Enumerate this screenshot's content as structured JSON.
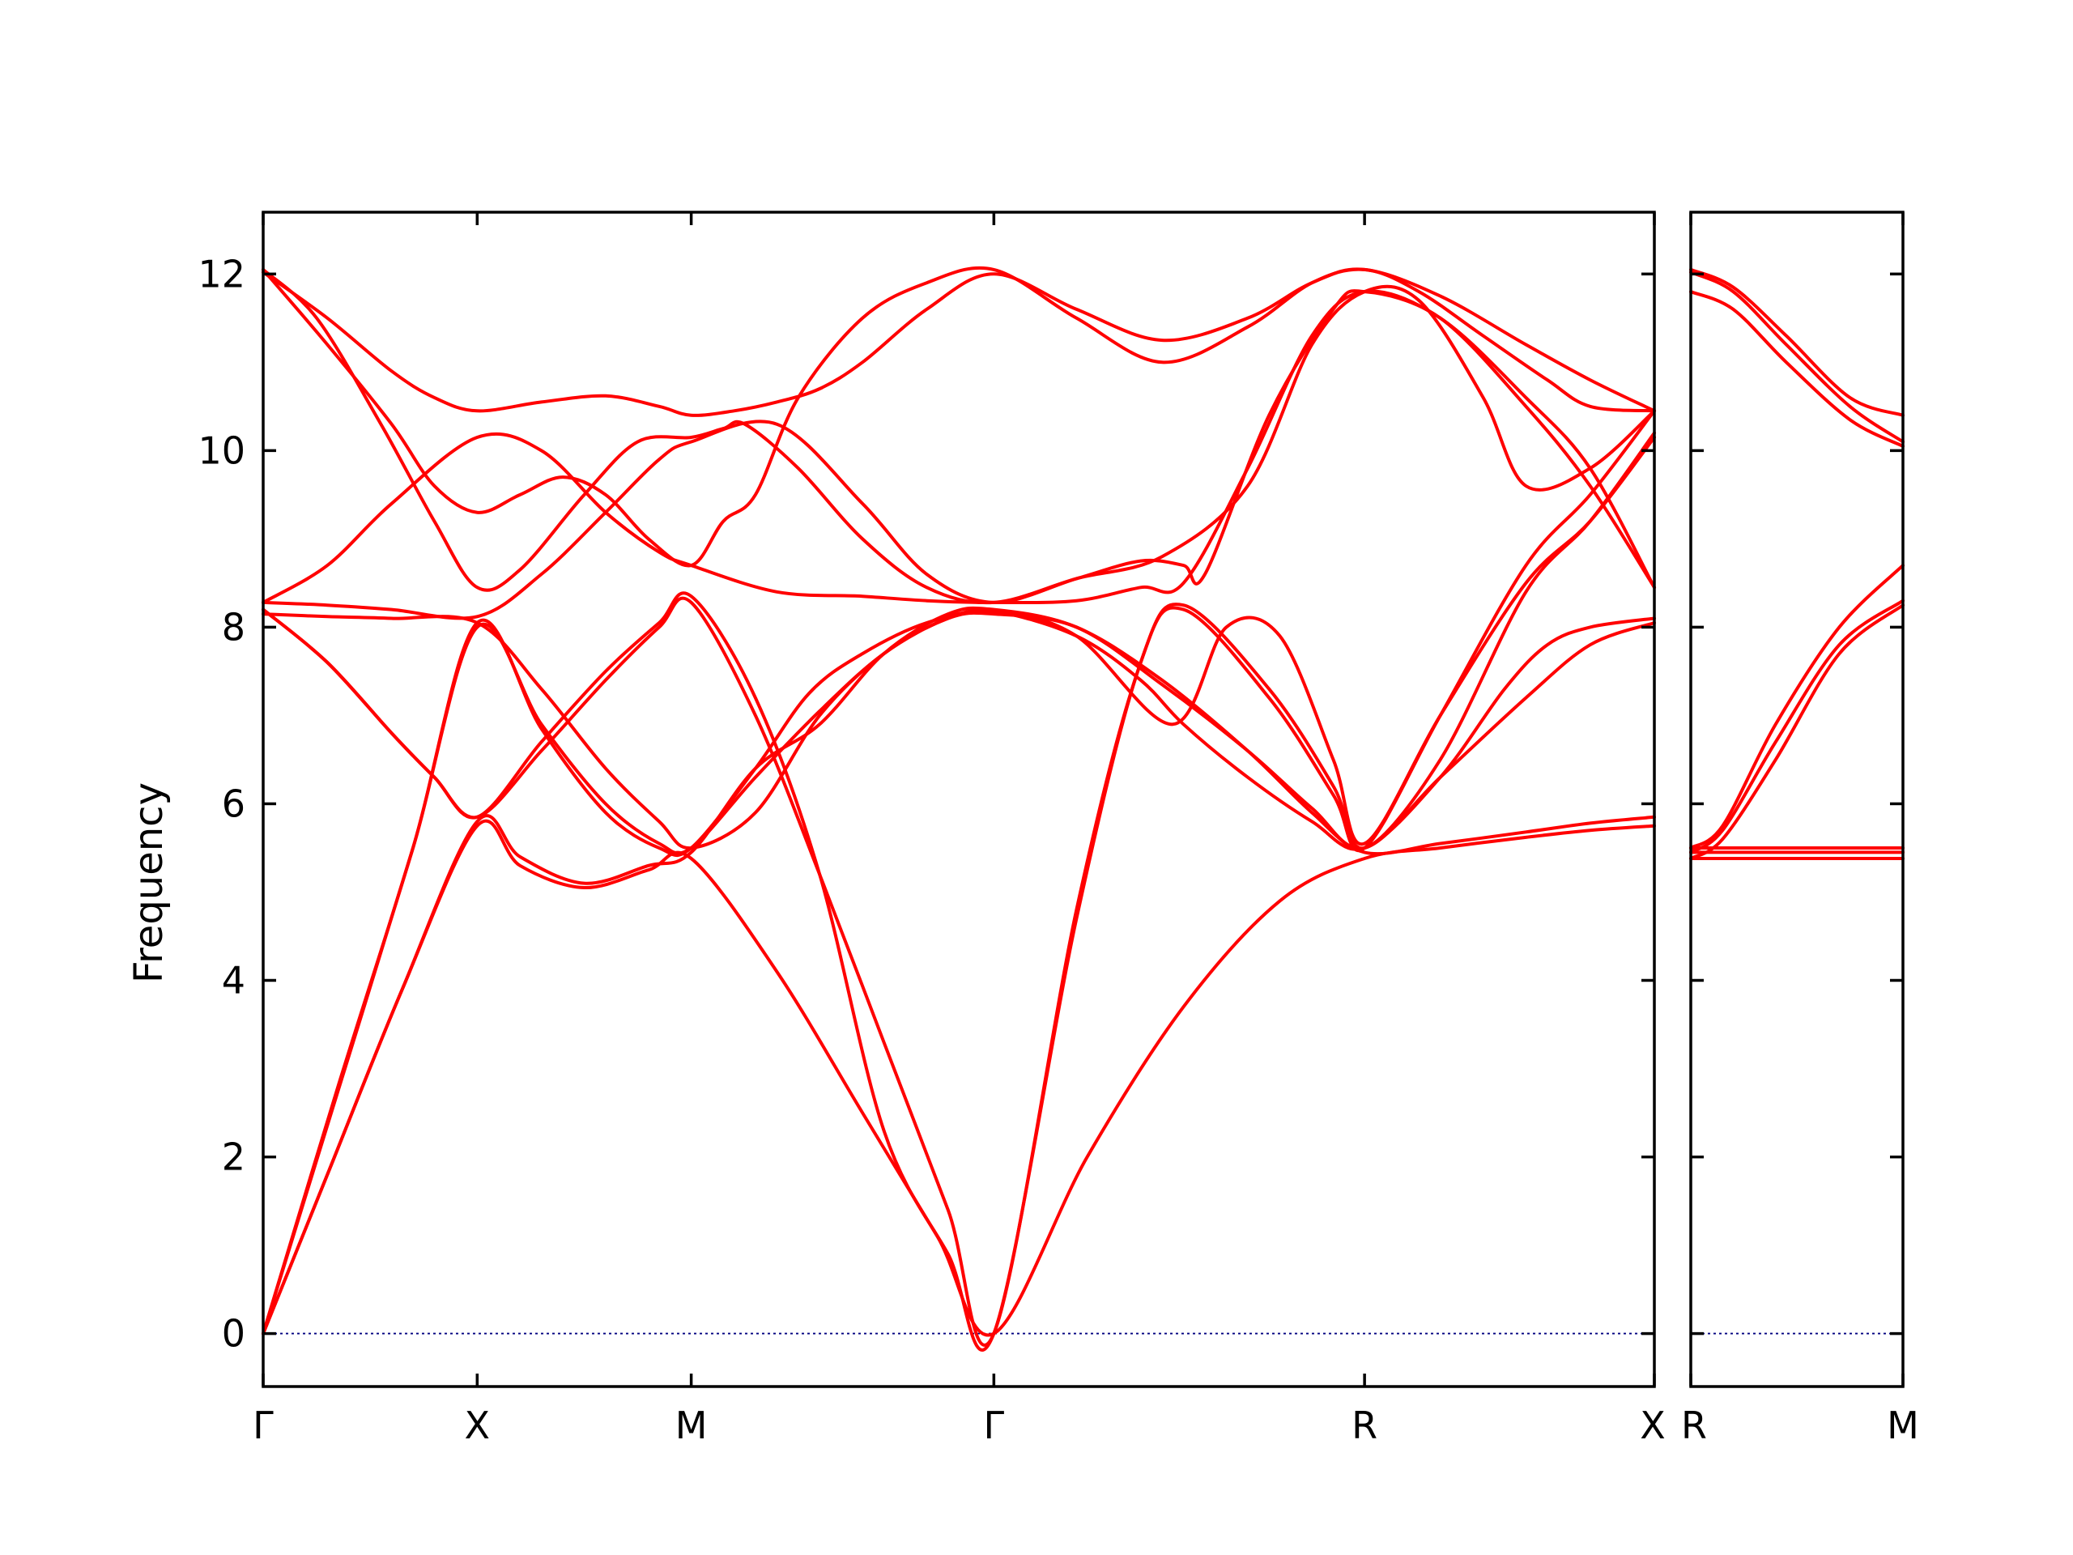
{
  "chart_data": {
    "type": "line",
    "ylabel": "Frequency",
    "ylim": [
      -0.6,
      12.7
    ],
    "yticks": [
      0,
      2,
      4,
      6,
      8,
      10,
      12
    ],
    "colors": {
      "bands": "#ff0000",
      "zero_line": "#000080",
      "axes": "#000000"
    },
    "grid": false,
    "panels": [
      {
        "name": "main",
        "xlim": [
          0,
          6.5
        ],
        "ticks": [
          {
            "label": "Γ",
            "x": 0
          },
          {
            "label": "X",
            "x": 1
          },
          {
            "label": "M",
            "x": 2
          },
          {
            "label": "Γ",
            "x": 3.414
          },
          {
            "label": "R",
            "x": 5.146
          },
          {
            "label": "X",
            "x": 6.5
          }
        ],
        "series": [
          {
            "x": [
              0,
              0.3,
              0.65,
              1.0,
              1.2,
              1.5,
              1.8,
              2.0,
              2.4,
              2.8,
              3.15,
              3.414,
              3.85,
              4.3,
              4.75,
              5.146,
              5.5,
              5.9,
              6.2,
              6.5
            ],
            "y": [
              0,
              1.8,
              3.9,
              5.75,
              5.3,
              5.05,
              5.25,
              5.38,
              4.1,
              2.5,
              1.1,
              0,
              2.0,
              3.7,
              4.9,
              5.38,
              5.5,
              5.62,
              5.7,
              5.75
            ]
          },
          {
            "x": [
              0,
              0.3,
              0.65,
              1.0,
              1.2,
              1.5,
              1.8,
              2.0,
              2.3,
              2.6,
              2.9,
              3.2,
              3.414,
              3.8,
              4.2,
              4.6,
              4.9,
              5.146,
              5.5,
              5.9,
              6.2,
              6.5
            ],
            "y": [
              0,
              1.8,
              3.9,
              5.8,
              5.4,
              5.1,
              5.3,
              5.45,
              6.4,
              6.9,
              7.7,
              8.15,
              8.2,
              8.0,
              7.4,
              6.6,
              5.9,
              5.45,
              5.55,
              5.68,
              5.78,
              5.85
            ]
          },
          {
            "x": [
              0,
              0.35,
              0.7,
              1.0,
              1.3,
              1.6,
              1.85,
              2.0,
              2.3,
              2.6,
              2.9,
              3.2,
              3.414,
              3.8,
              4.2,
              4.6,
              4.9,
              5.146,
              5.5,
              5.9,
              6.2,
              6.5
            ],
            "y": [
              0,
              2.75,
              5.5,
              8.0,
              6.9,
              6.0,
              5.55,
              5.5,
              6.3,
              7.05,
              7.7,
              8.1,
              8.15,
              8.0,
              7.35,
              6.6,
              5.95,
              5.5,
              6.3,
              7.2,
              7.8,
              8.05
            ]
          },
          {
            "x": [
              0,
              0.35,
              0.7,
              1.0,
              1.3,
              1.6,
              1.85,
              2.0,
              2.3,
              2.55,
              2.8,
              3.1,
              3.414,
              3.8,
              4.25,
              4.5,
              4.75,
              5.0,
              5.146,
              5.5,
              5.9,
              6.2,
              6.5
            ],
            "y": [
              0,
              2.8,
              5.5,
              8.05,
              6.85,
              5.9,
              5.5,
              5.5,
              6.4,
              7.25,
              7.7,
              8.05,
              8.18,
              7.9,
              6.9,
              8.0,
              7.9,
              6.5,
              5.55,
              7.0,
              8.5,
              9.2,
              10.15
            ]
          },
          {
            "x": [
              0,
              0.3,
              0.6,
              0.8,
              1.0,
              1.3,
              1.6,
              1.85,
              2.0,
              2.3,
              2.6,
              2.9,
              3.2,
              3.414,
              3.8,
              4.1,
              4.3,
              4.7,
              5.0,
              5.146,
              5.5,
              5.9,
              6.2,
              6.5
            ],
            "y": [
              8.2,
              7.6,
              6.8,
              6.3,
              5.85,
              6.6,
              7.4,
              8.0,
              8.28,
              7.0,
              5.2,
              3.3,
              1.4,
              0,
              4.8,
              7.6,
              8.25,
              7.3,
              6.2,
              5.5,
              6.5,
              8.4,
              9.2,
              10.2
            ]
          },
          {
            "x": [
              0,
              0.3,
              0.6,
              0.8,
              1.0,
              1.3,
              1.6,
              1.85,
              2.0,
              2.3,
              2.6,
              2.9,
              3.2,
              3.414,
              3.8,
              4.1,
              4.3,
              4.7,
              5.0,
              5.146,
              5.5,
              5.9,
              6.2,
              6.5
            ],
            "y": [
              8.2,
              7.6,
              6.8,
              6.3,
              5.85,
              6.7,
              7.5,
              8.05,
              8.35,
              7.2,
              5.2,
              2.3,
              0.9,
              0,
              4.7,
              7.6,
              8.2,
              7.2,
              6.1,
              5.5,
              7.0,
              8.7,
              9.5,
              10.45
            ]
          },
          {
            "x": [
              0,
              0.3,
              0.6,
              1.0,
              1.3,
              1.6,
              1.85,
              2.0,
              2.3,
              2.6,
              2.9,
              3.2,
              3.414,
              3.8,
              4.1,
              4.3,
              4.6,
              4.9,
              5.146,
              5.5,
              5.8,
              6.0,
              6.2,
              6.5
            ],
            "y": [
              8.15,
              8.12,
              8.1,
              8.05,
              7.3,
              6.4,
              5.8,
              5.5,
              5.9,
              7.0,
              7.7,
              8.1,
              8.18,
              7.9,
              7.4,
              6.9,
              6.3,
              5.8,
              5.5,
              6.3,
              7.3,
              7.8,
              8.0,
              8.1
            ]
          },
          {
            "x": [
              0,
              0.3,
              0.6,
              1.0,
              1.3,
              1.6,
              1.85,
              2.0,
              2.4,
              2.8,
              3.1,
              3.414,
              3.8,
              4.1,
              4.3,
              4.4,
              4.7,
              5.0,
              5.146,
              5.5,
              5.9,
              6.2,
              6.5
            ],
            "y": [
              8.28,
              8.25,
              8.2,
              8.12,
              8.6,
              9.3,
              9.9,
              10.1,
              10.3,
              9.4,
              8.6,
              8.28,
              8.55,
              8.75,
              8.7,
              8.6,
              10.4,
              11.6,
              11.8,
              11.5,
              10.5,
              9.6,
              8.45
            ]
          },
          {
            "x": [
              0,
              0.3,
              0.6,
              1.0,
              1.3,
              1.6,
              1.85,
              2.0,
              2.4,
              2.8,
              3.1,
              3.414,
              3.8,
              4.1,
              4.3,
              4.6,
              4.9,
              5.146,
              5.5,
              5.9,
              6.2,
              6.5
            ],
            "y": [
              8.28,
              8.7,
              9.4,
              10.15,
              10.0,
              9.3,
              8.85,
              8.7,
              8.4,
              8.35,
              8.3,
              8.28,
              8.3,
              8.45,
              8.5,
              9.8,
              11.3,
              11.8,
              11.5,
              10.6,
              9.8,
              8.45
            ]
          },
          {
            "x": [
              0,
              0.25,
              0.55,
              0.8,
              1.0,
              1.2,
              1.5,
              1.75,
              2.0,
              2.15,
              2.25,
              2.5,
              2.8,
              3.1,
              3.414,
              3.8,
              4.2,
              4.6,
              4.9,
              5.146,
              5.4,
              5.7,
              5.9,
              6.2,
              6.5
            ],
            "y": [
              12.05,
              11.5,
              10.3,
              9.2,
              8.45,
              8.65,
              9.5,
              10.1,
              10.15,
              10.25,
              10.3,
              9.8,
              9.0,
              8.45,
              8.28,
              8.55,
              8.8,
              9.6,
              11.2,
              11.8,
              11.7,
              10.6,
              9.6,
              9.8,
              10.45
            ]
          },
          {
            "x": [
              0,
              0.3,
              0.6,
              0.8,
              1.0,
              1.2,
              1.4,
              1.6,
              1.8,
              2.0,
              2.15,
              2.3,
              2.5,
              2.8,
              3.1,
              3.414,
              3.8,
              4.2,
              4.6,
              4.9,
              5.146,
              5.4,
              5.7,
              6.0,
              6.2,
              6.5
            ],
            "y": [
              12.05,
              11.2,
              10.3,
              9.6,
              9.3,
              9.5,
              9.7,
              9.5,
              9.0,
              8.7,
              9.2,
              9.5,
              10.6,
              11.5,
              11.9,
              12.05,
              11.5,
              11.0,
              11.4,
              11.9,
              12.05,
              11.8,
              11.3,
              10.8,
              10.5,
              10.45
            ]
          },
          {
            "x": [
              0,
              0.3,
              0.6,
              0.8,
              1.0,
              1.3,
              1.6,
              1.85,
              2.0,
              2.2,
              2.4,
              2.6,
              2.8,
              3.1,
              3.414,
              3.8,
              4.2,
              4.6,
              4.9,
              5.146,
              5.5,
              5.9,
              6.2,
              6.5
            ],
            "y": [
              12.02,
              11.5,
              10.9,
              10.6,
              10.45,
              10.55,
              10.62,
              10.5,
              10.4,
              10.45,
              10.55,
              10.7,
              11.0,
              11.6,
              12.0,
              11.6,
              11.25,
              11.5,
              11.9,
              12.05,
              11.75,
              11.2,
              10.8,
              10.45
            ]
          }
        ]
      },
      {
        "name": "side",
        "xlim": [
          0,
          1
        ],
        "ticks": [
          {
            "label": "R",
            "x": 0
          },
          {
            "label": "M",
            "x": 1
          }
        ],
        "series": [
          {
            "x": [
              0,
              1
            ],
            "y": [
              5.38,
              5.38
            ]
          },
          {
            "x": [
              0,
              1
            ],
            "y": [
              5.45,
              5.45
            ]
          },
          {
            "x": [
              0,
              1
            ],
            "y": [
              5.5,
              5.5
            ]
          },
          {
            "x": [
              0,
              0.15,
              0.4,
              0.7,
              1.0
            ],
            "y": [
              5.38,
              5.6,
              6.5,
              7.7,
              8.25
            ]
          },
          {
            "x": [
              0,
              0.15,
              0.4,
              0.7,
              1.0
            ],
            "y": [
              5.45,
              5.7,
              6.7,
              7.8,
              8.3
            ]
          },
          {
            "x": [
              0,
              0.15,
              0.4,
              0.7,
              1.0
            ],
            "y": [
              5.5,
              5.75,
              6.9,
              8.0,
              8.7
            ]
          },
          {
            "x": [
              0,
              0.2,
              0.45,
              0.75,
              1.0
            ],
            "y": [
              12.05,
              11.85,
              11.3,
              10.6,
              10.4
            ]
          },
          {
            "x": [
              0,
              0.2,
              0.45,
              0.75,
              1.0
            ],
            "y": [
              11.8,
              11.6,
              11.0,
              10.35,
              10.05
            ]
          },
          {
            "x": [
              0,
              0.2,
              0.45,
              0.75,
              1.0
            ],
            "y": [
              12.02,
              11.8,
              11.2,
              10.5,
              10.1
            ]
          }
        ]
      }
    ]
  }
}
